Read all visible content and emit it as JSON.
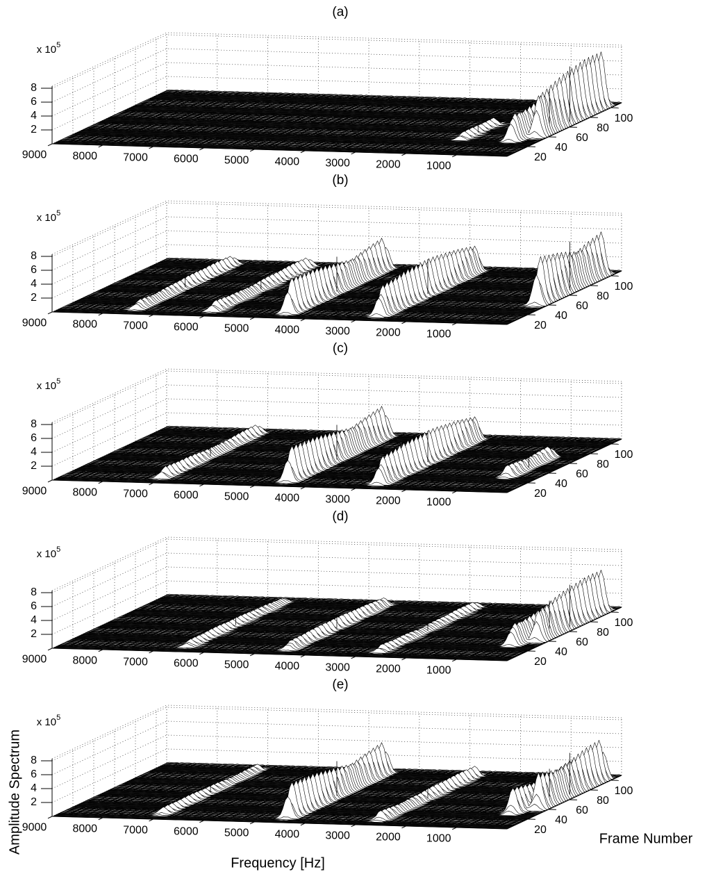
{
  "chart_data": [
    {
      "type": "surface",
      "title": "(a)",
      "z_multiplier": {
        "base": "x 10",
        "exponent": "5"
      },
      "xlim": [
        0,
        9000
      ],
      "ylim": [
        0,
        110
      ],
      "zlim": [
        0,
        8.3
      ],
      "xticks": [
        1000,
        2000,
        3000,
        4000,
        5000,
        6000,
        7000,
        8000,
        9000
      ],
      "yticks": [
        20,
        40,
        60,
        80,
        100
      ],
      "zticks": [
        2,
        4,
        6,
        8
      ],
      "grid": true,
      "ridges": [
        {
          "freq": 200,
          "frames": [
            40,
            100
          ],
          "amplitude": 8
        },
        {
          "freq": 500,
          "frames": [
            30,
            100
          ],
          "amplitude": 5
        },
        {
          "freq": 1500,
          "frames": [
            30,
            60
          ],
          "amplitude": 1
        }
      ]
    },
    {
      "type": "surface",
      "title": "(b)",
      "z_multiplier": {
        "base": "x 10",
        "exponent": "5"
      },
      "xlim": [
        0,
        9000
      ],
      "ylim": [
        0,
        110
      ],
      "zlim": [
        0,
        8.3
      ],
      "xticks": [
        1000,
        2000,
        3000,
        4000,
        5000,
        6000,
        7000,
        8000,
        9000
      ],
      "yticks": [
        20,
        40,
        60,
        80,
        100
      ],
      "zticks": [
        2,
        4,
        6,
        8
      ],
      "grid": true,
      "ridges": [
        {
          "freq": 4500,
          "frames": [
            10,
            100
          ],
          "amplitude": 5
        },
        {
          "freq": 2700,
          "frames": [
            10,
            100
          ],
          "amplitude": 5
        },
        {
          "freq": 200,
          "frames": [
            40,
            100
          ],
          "amplitude": 7
        },
        {
          "freq": 7500,
          "frames": [
            10,
            100
          ],
          "amplitude": 1.5
        },
        {
          "freq": 6000,
          "frames": [
            10,
            100
          ],
          "amplitude": 1.5
        }
      ]
    },
    {
      "type": "surface",
      "title": "(c)",
      "z_multiplier": {
        "base": "x 10",
        "exponent": "5"
      },
      "xlim": [
        0,
        9000
      ],
      "ylim": [
        0,
        110
      ],
      "zlim": [
        0,
        8.3
      ],
      "xticks": [
        1000,
        2000,
        3000,
        4000,
        5000,
        6000,
        7000,
        8000,
        9000
      ],
      "yticks": [
        20,
        40,
        60,
        80,
        100
      ],
      "zticks": [
        2,
        4,
        6,
        8
      ],
      "grid": true,
      "ridges": [
        {
          "freq": 4500,
          "frames": [
            10,
            100
          ],
          "amplitude": 5
        },
        {
          "freq": 2700,
          "frames": [
            10,
            100
          ],
          "amplitude": 4.5
        },
        {
          "freq": 600,
          "frames": [
            30,
            70
          ],
          "amplitude": 2
        },
        {
          "freq": 7000,
          "frames": [
            10,
            100
          ],
          "amplitude": 1.5
        }
      ]
    },
    {
      "type": "surface",
      "title": "(d)",
      "z_multiplier": {
        "base": "x 10",
        "exponent": "5"
      },
      "xlim": [
        0,
        9000
      ],
      "ylim": [
        0,
        110
      ],
      "zlim": [
        0,
        8.3
      ],
      "xticks": [
        1000,
        2000,
        3000,
        4000,
        5000,
        6000,
        7000,
        8000,
        9000
      ],
      "yticks": [
        20,
        40,
        60,
        80,
        100
      ],
      "zticks": [
        2,
        4,
        6,
        8
      ],
      "grid": true,
      "ridges": [
        {
          "freq": 200,
          "frames": [
            40,
            100
          ],
          "amplitude": 6
        },
        {
          "freq": 500,
          "frames": [
            30,
            100
          ],
          "amplitude": 4
        },
        {
          "freq": 4500,
          "frames": [
            10,
            100
          ],
          "amplitude": 1.5
        },
        {
          "freq": 6500,
          "frames": [
            10,
            100
          ],
          "amplitude": 1
        },
        {
          "freq": 2700,
          "frames": [
            10,
            100
          ],
          "amplitude": 1
        }
      ]
    },
    {
      "type": "surface",
      "title": "(e)",
      "z_multiplier": {
        "base": "x 10",
        "exponent": "5"
      },
      "xlabel": "Frequency [Hz]",
      "ylabel": "Frame Number",
      "zlabel": "Amplitude Spectrum",
      "xlim": [
        0,
        9000
      ],
      "ylim": [
        0,
        110
      ],
      "zlim": [
        0,
        8.3
      ],
      "xticks": [
        1000,
        2000,
        3000,
        4000,
        5000,
        6000,
        7000,
        8000,
        9000
      ],
      "yticks": [
        20,
        40,
        60,
        80,
        100
      ],
      "zticks": [
        2,
        4,
        6,
        8
      ],
      "grid": true,
      "ridges": [
        {
          "freq": 4500,
          "frames": [
            10,
            100
          ],
          "amplitude": 5
        },
        {
          "freq": 200,
          "frames": [
            40,
            100
          ],
          "amplitude": 6
        },
        {
          "freq": 500,
          "frames": [
            30,
            100
          ],
          "amplitude": 4
        },
        {
          "freq": 2700,
          "frames": [
            10,
            100
          ],
          "amplitude": 1.5
        },
        {
          "freq": 7000,
          "frames": [
            10,
            100
          ],
          "amplitude": 1
        }
      ]
    }
  ]
}
